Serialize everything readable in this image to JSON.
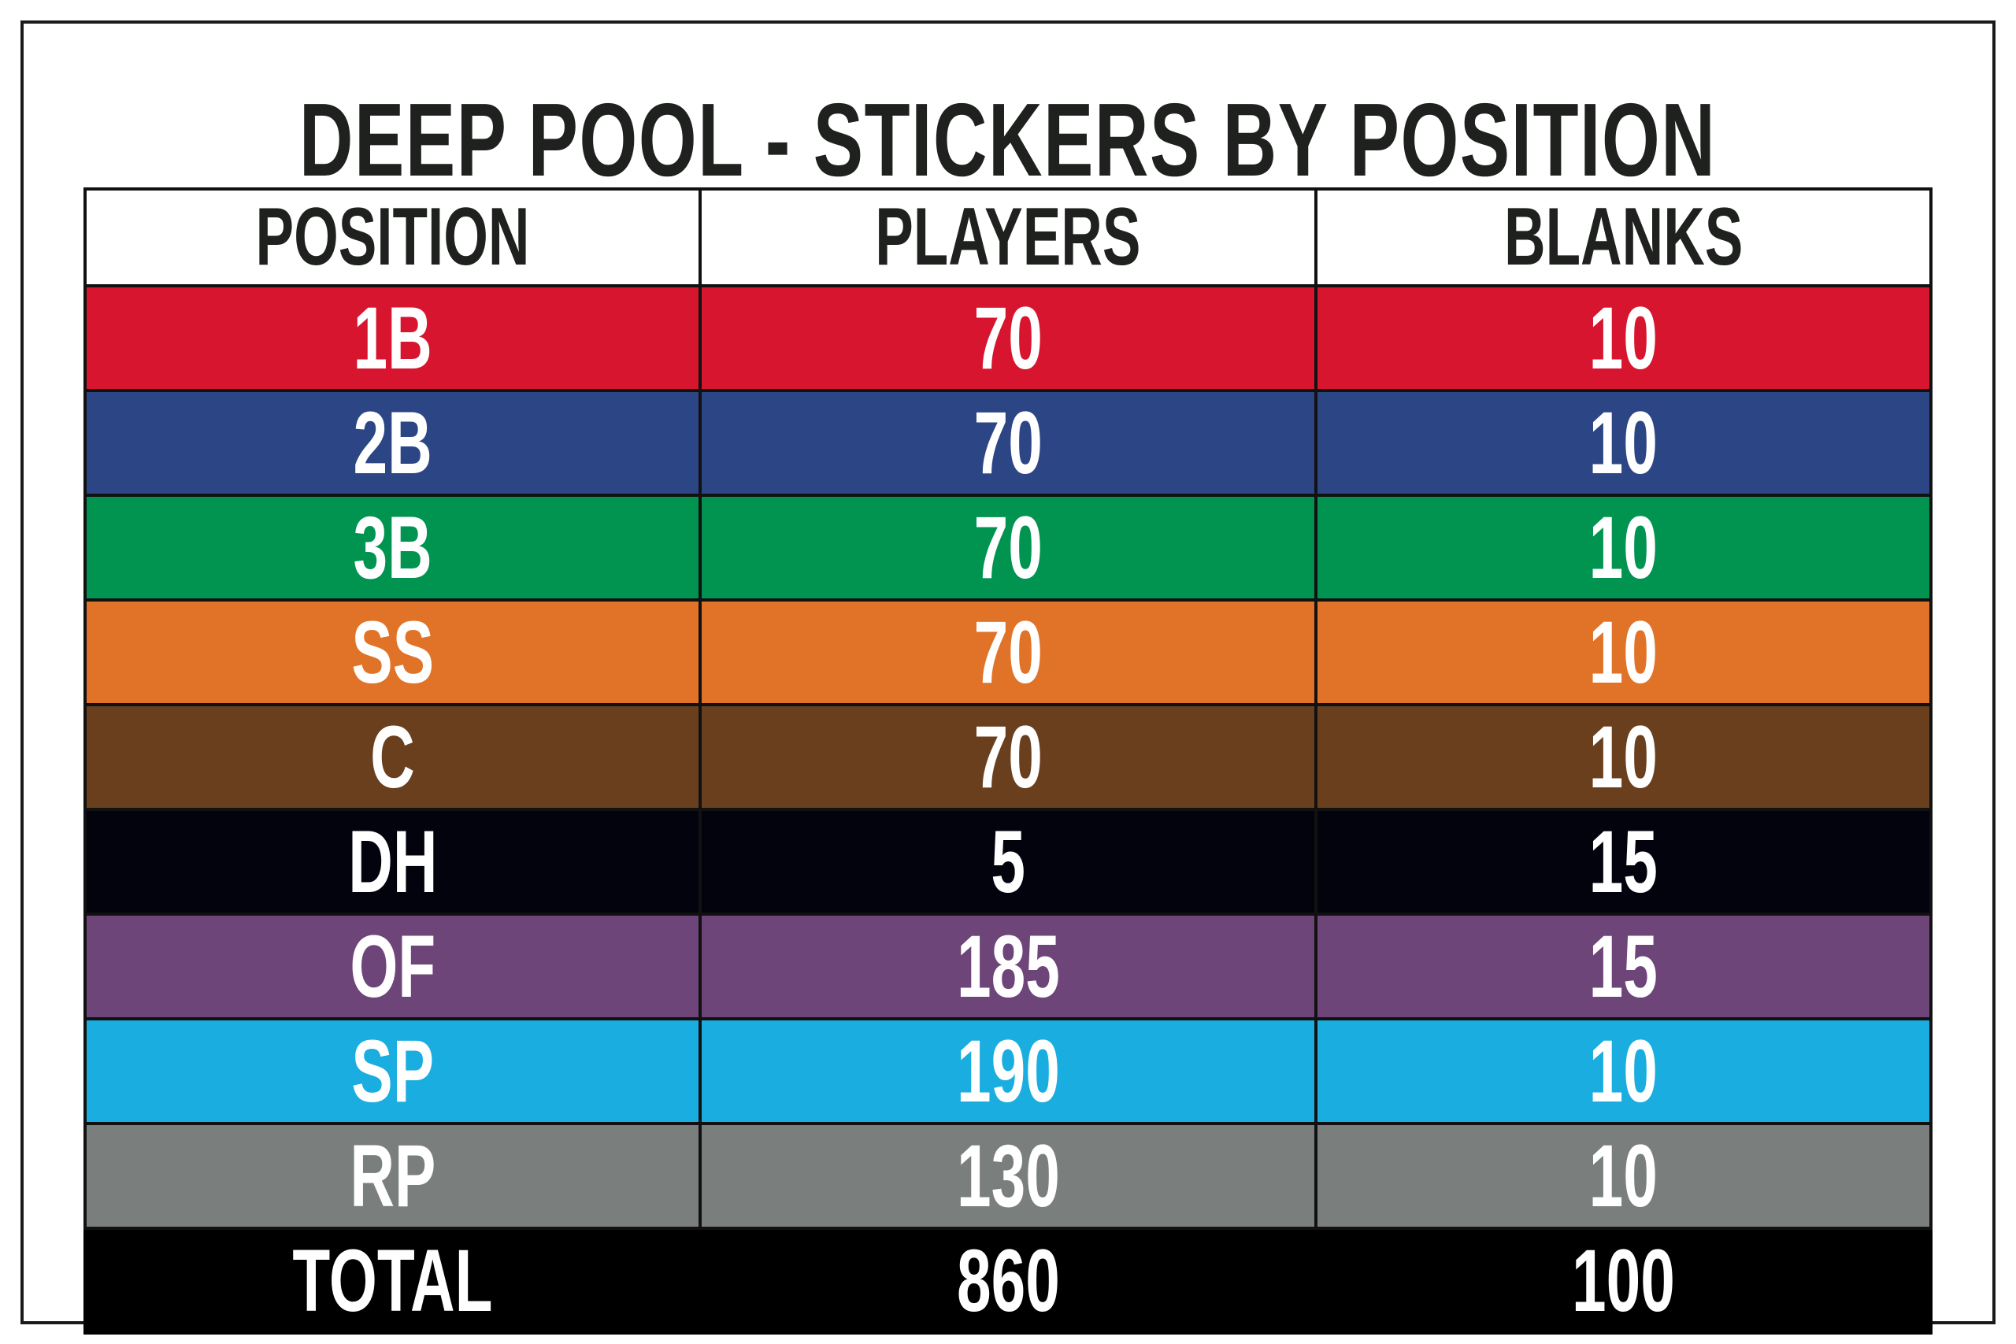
{
  "title": "DEEP POOL - STICKERS BY POSITION",
  "chart_data": {
    "type": "table",
    "columns": [
      "POSITION",
      "PLAYERS",
      "BLANKS"
    ],
    "rows": [
      {
        "position": "1B",
        "players": "70",
        "blanks": "10",
        "color": "#D7152E"
      },
      {
        "position": "2B",
        "players": "70",
        "blanks": "10",
        "color": "#2C4585"
      },
      {
        "position": "3B",
        "players": "70",
        "blanks": "10",
        "color": "#009450"
      },
      {
        "position": "SS",
        "players": "70",
        "blanks": "10",
        "color": "#E07328"
      },
      {
        "position": "C",
        "players": "70",
        "blanks": "10",
        "color": "#6A3F1E"
      },
      {
        "position": "DH",
        "players": "5",
        "blanks": "15",
        "color": "#02030D"
      },
      {
        "position": "OF",
        "players": "185",
        "blanks": "15",
        "color": "#6E4579"
      },
      {
        "position": "SP",
        "players": "190",
        "blanks": "10",
        "color": "#1AADDF"
      },
      {
        "position": "RP",
        "players": "130",
        "blanks": "10",
        "color": "#7A7F7E"
      }
    ],
    "total": {
      "position": "TOTAL",
      "players": "860",
      "blanks": "100",
      "color": "#000000"
    }
  }
}
